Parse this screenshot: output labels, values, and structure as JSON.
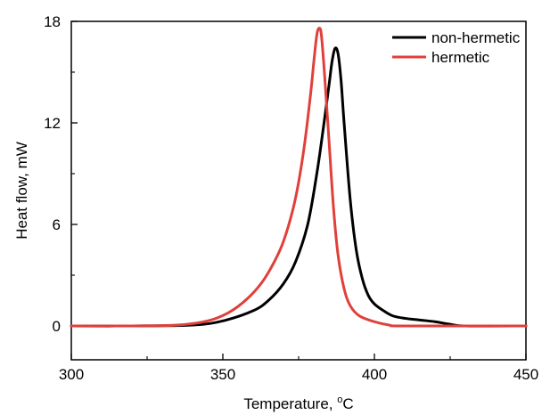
{
  "chart_data": {
    "type": "line",
    "xlabel": "Temperature, ",
    "xlabel_sup": "o",
    "xlabel_unit": "C",
    "ylabel": "Heat flow, mW",
    "xlim": [
      300,
      450
    ],
    "ylim": [
      -2,
      18
    ],
    "xticks": [
      300,
      350,
      400,
      450
    ],
    "xtick_labels": [
      "300",
      "350",
      "400",
      "450"
    ],
    "yticks": [
      0,
      6,
      12,
      18
    ],
    "ytick_labels": [
      "0",
      "6",
      "12",
      "18"
    ],
    "grid": false,
    "legend_position": "top-right",
    "series": [
      {
        "name": "non-hermetic",
        "color": "#000000",
        "points": [
          [
            300,
            0
          ],
          [
            320,
            0
          ],
          [
            340,
            0.05
          ],
          [
            350,
            0.3
          ],
          [
            360,
            0.9
          ],
          [
            365,
            1.5
          ],
          [
            370,
            2.5
          ],
          [
            374,
            3.8
          ],
          [
            378,
            6.0
          ],
          [
            381,
            9.0
          ],
          [
            383,
            11.5
          ],
          [
            385,
            14.2
          ],
          [
            386,
            15.6
          ],
          [
            387,
            16.4
          ],
          [
            388,
            16.1
          ],
          [
            389,
            14.5
          ],
          [
            390,
            12.0
          ],
          [
            392,
            7.5
          ],
          [
            394,
            4.5
          ],
          [
            396,
            2.8
          ],
          [
            398,
            1.8
          ],
          [
            400,
            1.3
          ],
          [
            403,
            0.9
          ],
          [
            406,
            0.6
          ],
          [
            410,
            0.45
          ],
          [
            415,
            0.35
          ],
          [
            420,
            0.25
          ],
          [
            425,
            0.1
          ],
          [
            430,
            0
          ],
          [
            450,
            0
          ]
        ]
      },
      {
        "name": "hermetic",
        "color": "#e0403a",
        "points": [
          [
            300,
            0
          ],
          [
            320,
            0
          ],
          [
            335,
            0.05
          ],
          [
            345,
            0.3
          ],
          [
            352,
            0.8
          ],
          [
            358,
            1.6
          ],
          [
            363,
            2.6
          ],
          [
            367,
            3.8
          ],
          [
            370,
            5.0
          ],
          [
            373,
            6.8
          ],
          [
            375,
            8.5
          ],
          [
            377,
            10.8
          ],
          [
            379,
            13.8
          ],
          [
            380,
            15.6
          ],
          [
            381,
            17.2
          ],
          [
            381.8,
            17.6
          ],
          [
            382.5,
            17.2
          ],
          [
            383.5,
            15.0
          ],
          [
            385,
            11.0
          ],
          [
            386.5,
            7.0
          ],
          [
            388,
            4.2
          ],
          [
            390,
            2.2
          ],
          [
            392,
            1.2
          ],
          [
            395,
            0.6
          ],
          [
            400,
            0.25
          ],
          [
            405,
            0.05
          ],
          [
            410,
            0
          ],
          [
            450,
            0
          ]
        ]
      }
    ]
  }
}
